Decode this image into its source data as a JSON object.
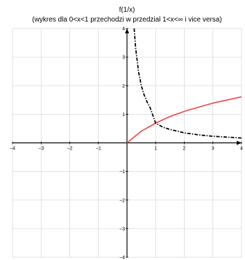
{
  "chart_data": {
    "type": "line",
    "title": "f(1/x)",
    "subtitle": "(wykres dla 0<x<1 przechodzi w przedzial 1<x<∞ i vice versa)",
    "xlim": [
      -4,
      4
    ],
    "ylim": [
      -4,
      4
    ],
    "grid": true,
    "x_ticks": [
      -4,
      -3,
      -2,
      -1,
      0,
      1,
      2,
      3,
      4
    ],
    "y_ticks": [
      -4,
      -3,
      -2,
      -1,
      0,
      1,
      2,
      3,
      4
    ],
    "x_tick_labels": [
      "−4",
      "−3",
      "−2",
      "−1",
      "",
      "1",
      "2",
      "3",
      "4"
    ],
    "y_tick_labels": [
      "−4",
      "−3",
      "−2",
      "−1",
      "",
      "1",
      "2",
      "3",
      "4"
    ],
    "series": [
      {
        "style": "solid",
        "color": "#ee4444",
        "x": [
          0,
          0.5,
          1,
          1.5,
          2,
          2.5,
          3,
          3.5,
          4
        ],
        "y": [
          0,
          0.41,
          0.69,
          0.92,
          1.1,
          1.25,
          1.39,
          1.5,
          1.61
        ]
      },
      {
        "style": "dash-dot",
        "color": "#000000",
        "x": [
          0.25,
          0.3,
          0.4,
          0.5,
          0.6,
          0.7,
          0.8,
          1,
          1.25,
          1.5,
          2,
          2.5,
          3,
          3.5,
          4
        ],
        "y": [
          4,
          3.33,
          2.5,
          2,
          1.67,
          1.43,
          1.25,
          0.69,
          0.55,
          0.47,
          0.35,
          0.28,
          0.23,
          0.2,
          0.17
        ]
      }
    ]
  }
}
